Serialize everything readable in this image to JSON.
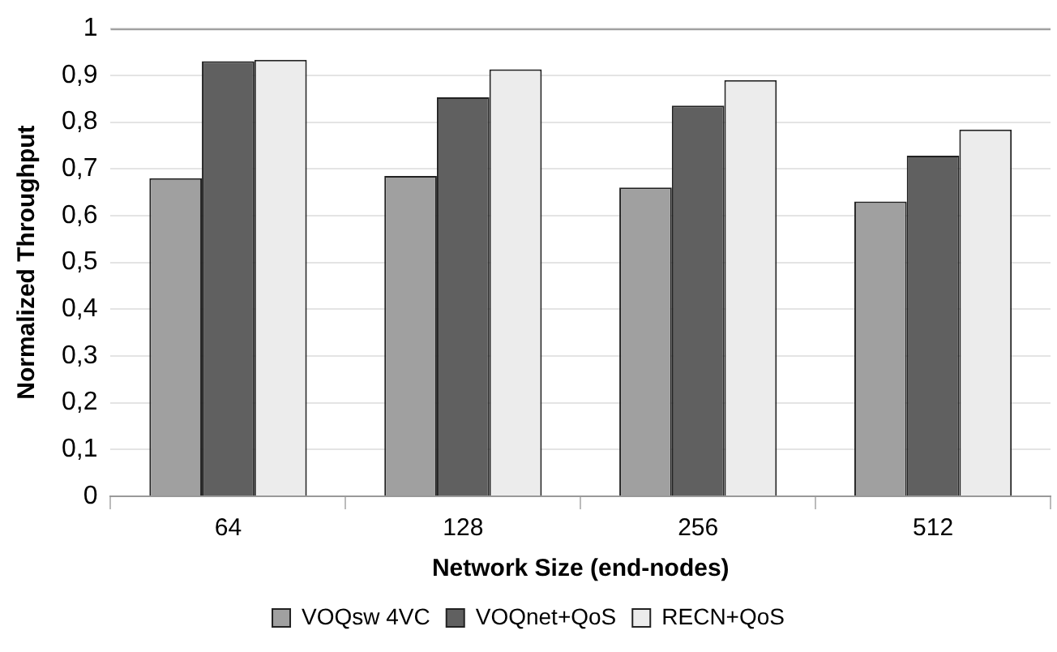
{
  "chart_data": {
    "type": "bar",
    "xlabel": "Network Size (end-nodes)",
    "ylabel": "Normalized Throughput",
    "categories": [
      "64",
      "128",
      "256",
      "512"
    ],
    "series": [
      {
        "name": "VOQsw 4VC",
        "color": "#a0a0a0",
        "values": [
          0.68,
          0.685,
          0.66,
          0.63
        ]
      },
      {
        "name": "VOQnet+QoS",
        "color": "#606060",
        "values": [
          0.93,
          0.853,
          0.835,
          0.728
        ]
      },
      {
        "name": "RECN+QoS",
        "color": "#ececec",
        "values": [
          0.933,
          0.913,
          0.89,
          0.784
        ]
      }
    ],
    "ylim": [
      0,
      1
    ],
    "yticks": [
      0,
      {
        "value": 0.1,
        "label": "0,1"
      },
      {
        "value": 0.2,
        "label": "0,2"
      },
      {
        "value": 0.3,
        "label": "0,3"
      },
      {
        "value": 0.4,
        "label": "0,4"
      },
      {
        "value": 0.5,
        "label": "0,5"
      },
      {
        "value": 0.6,
        "label": "0,6"
      },
      {
        "value": 0.7,
        "label": "0,7"
      },
      {
        "value": 0.8,
        "label": "0,8"
      },
      {
        "value": 0.9,
        "label": "0,9"
      },
      1
    ],
    "grid": "y",
    "legend": "bottom"
  }
}
